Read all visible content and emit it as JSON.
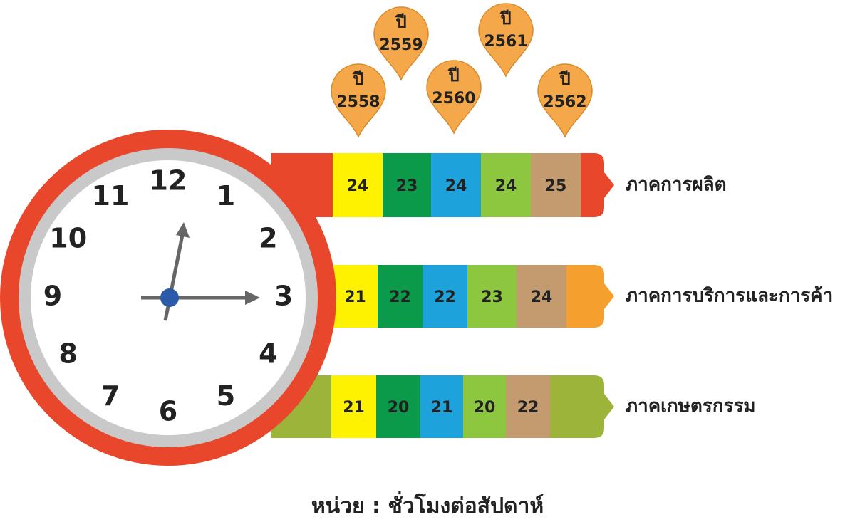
{
  "chart_data": {
    "type": "clock-bars",
    "categories": [
      "ภาคการผลิต",
      "ภาคการบริการและการค้า",
      "ภาคเกษตรกรรม"
    ],
    "category_colors": [
      "#e8472b",
      "#f5a02e",
      "#9cb43a"
    ],
    "year_label": "ปี",
    "series": [
      {
        "name": "2558",
        "color": "#fff200",
        "values": [
          24,
          21,
          21
        ]
      },
      {
        "name": "2559",
        "color": "#0b9a4a",
        "values": [
          23,
          22,
          20
        ]
      },
      {
        "name": "2560",
        "color": "#1ea2dc",
        "values": [
          24,
          22,
          21
        ]
      },
      {
        "name": "2561",
        "color": "#8dc63f",
        "values": [
          24,
          23,
          20
        ]
      },
      {
        "name": "2562",
        "color": "#c39b6f",
        "values": [
          25,
          24,
          22
        ]
      }
    ],
    "pin_color": "#f5a84a",
    "clock_numbers": [
      12,
      1,
      2,
      3,
      4,
      5,
      6,
      7,
      8,
      9,
      10,
      11
    ],
    "unit": "หน่วย : ชั่วโมงต่อสัปดาห์"
  }
}
